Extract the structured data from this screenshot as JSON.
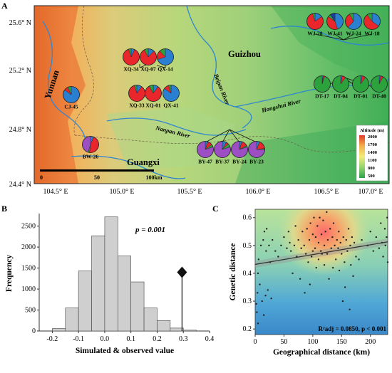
{
  "colors": {
    "pie": [
      "#2a7fd0",
      "#e8262b",
      "#2ba23c",
      "#9b4fc3",
      "#1c3f9c"
    ],
    "histogram_bar": "#cfcfcf",
    "observed_marker": "#111111",
    "regression": "#333333"
  },
  "panel_a": {
    "label": "A",
    "lat_ticks": [
      "25.6° N",
      "25.2° N",
      "24.8° N",
      "24.4° N"
    ],
    "lon_ticks": [
      "104.5° E",
      "105.0° E",
      "105.5° E",
      "106.0° E",
      "106.5° E",
      "107.0° E"
    ],
    "regions": {
      "yunnan": "Yunnan",
      "guizhou": "Guizhou",
      "guangxi": "Guangxi"
    },
    "rivers": {
      "beipan": "Beipan River",
      "hongshui": "Hongshui River",
      "nanpan": "Nanpan River"
    },
    "scale": [
      "0",
      "50",
      "100km"
    ],
    "legend": {
      "title": "Altitude (m)",
      "values": [
        "2000",
        "1700",
        "1400",
        "1100",
        "800",
        "500"
      ]
    },
    "populations": [
      {
        "id": "CJ-45",
        "shares": [
          0.85,
          0.08,
          0.07,
          0,
          0
        ]
      },
      {
        "id": "BW-26",
        "shares": [
          0.06,
          0.46,
          0.03,
          0.45,
          0
        ]
      },
      {
        "id": "XQ-34",
        "shares": [
          0.07,
          0.88,
          0.05,
          0,
          0
        ]
      },
      {
        "id": "XQ-07",
        "shares": [
          0.12,
          0.8,
          0.08,
          0,
          0
        ]
      },
      {
        "id": "QX-14",
        "shares": [
          0.7,
          0.18,
          0.12,
          0,
          0
        ]
      },
      {
        "id": "XQ-33",
        "shares": [
          0.1,
          0.85,
          0.05,
          0,
          0
        ]
      },
      {
        "id": "XQ-01",
        "shares": [
          0.1,
          0.82,
          0.08,
          0,
          0
        ]
      },
      {
        "id": "QX-41",
        "shares": [
          0.85,
          0.1,
          0.05,
          0,
          0
        ]
      },
      {
        "id": "WJ-28",
        "shares": [
          0.15,
          0.8,
          0.05,
          0,
          0
        ]
      },
      {
        "id": "WJ-41",
        "shares": [
          0.45,
          0.4,
          0.05,
          0,
          0.1
        ]
      },
      {
        "id": "WJ-24",
        "shares": [
          0.62,
          0.3,
          0.08,
          0,
          0
        ]
      },
      {
        "id": "WJ-18",
        "shares": [
          0.35,
          0.55,
          0.1,
          0,
          0
        ]
      },
      {
        "id": "DT-17",
        "shares": [
          0.02,
          0.03,
          0.95,
          0,
          0
        ]
      },
      {
        "id": "DT-04",
        "shares": [
          0.03,
          0.07,
          0.9,
          0,
          0
        ]
      },
      {
        "id": "DT-01",
        "shares": [
          0.03,
          0.07,
          0.9,
          0,
          0
        ]
      },
      {
        "id": "DT-40",
        "shares": [
          0.03,
          0.05,
          0.92,
          0,
          0
        ]
      },
      {
        "id": "BY-47",
        "shares": [
          0.05,
          0.1,
          0.05,
          0.8,
          0
        ]
      },
      {
        "id": "BY-37",
        "shares": [
          0.08,
          0.05,
          0.07,
          0.8,
          0
        ]
      },
      {
        "id": "BY-24",
        "shares": [
          0.05,
          0.12,
          0.03,
          0.8,
          0
        ]
      },
      {
        "id": "BY-23",
        "shares": [
          0.06,
          0.17,
          0.02,
          0.75,
          0
        ]
      }
    ]
  },
  "chart_data": [
    {
      "panel": "B",
      "type": "bar",
      "xlabel": "Simulated & observed value",
      "ylabel": "Frequency",
      "xlim": [
        -0.25,
        0.4
      ],
      "ylim": [
        0,
        2800
      ],
      "x_ticks": [
        "-0.2",
        "-0.1",
        "0.0",
        "0.1",
        "0.2",
        "0.3",
        "0.4"
      ],
      "y_ticks": [
        "0",
        "500",
        "1000",
        "1500",
        "2000",
        "2500"
      ],
      "bins": [
        {
          "x0": -0.2,
          "x1": -0.15,
          "count": 60
        },
        {
          "x0": -0.15,
          "x1": -0.1,
          "count": 550
        },
        {
          "x0": -0.1,
          "x1": -0.05,
          "count": 1430
        },
        {
          "x0": -0.05,
          "x1": 0.0,
          "count": 2270
        },
        {
          "x0": 0.0,
          "x1": 0.05,
          "count": 2720
        },
        {
          "x0": 0.05,
          "x1": 0.1,
          "count": 1790
        },
        {
          "x0": 0.1,
          "x1": 0.15,
          "count": 1170
        },
        {
          "x0": 0.15,
          "x1": 0.2,
          "count": 550
        },
        {
          "x0": 0.2,
          "x1": 0.25,
          "count": 250
        },
        {
          "x0": 0.25,
          "x1": 0.3,
          "count": 70
        },
        {
          "x0": 0.3,
          "x1": 0.35,
          "count": 20
        }
      ],
      "observed_value": 0.295,
      "observed_marker_height": 1400,
      "annotation": "p = 0.001"
    },
    {
      "panel": "C",
      "type": "scatter",
      "xlabel": "Geographical distance (km)",
      "ylabel": "Genetic distance",
      "xlim": [
        0,
        230
      ],
      "ylim": [
        0.18,
        0.63
      ],
      "x_ticks": [
        "0",
        "50",
        "100",
        "150",
        "200"
      ],
      "y_ticks": [
        "0.2",
        "0.3",
        "0.4",
        "0.5",
        "0.6"
      ],
      "regression": {
        "x": [
          0,
          230
        ],
        "y": [
          0.432,
          0.513
        ]
      },
      "annotation": "R²adj = 0.0850, p < 0.001",
      "points_generated_note": "",
      "points": [
        [
          2,
          0.29
        ],
        [
          3,
          0.26
        ],
        [
          4,
          0.33
        ],
        [
          5,
          0.22
        ],
        [
          5,
          0.4
        ],
        [
          6,
          0.45
        ],
        [
          8,
          0.36
        ],
        [
          10,
          0.5
        ],
        [
          12,
          0.3
        ],
        [
          14,
          0.52
        ],
        [
          15,
          0.25
        ],
        [
          16,
          0.55
        ],
        [
          18,
          0.32
        ],
        [
          19,
          0.48
        ],
        [
          20,
          0.56
        ],
        [
          22,
          0.34
        ],
        [
          24,
          0.5
        ],
        [
          26,
          0.44
        ],
        [
          28,
          0.31
        ],
        [
          30,
          0.52
        ],
        [
          35,
          0.48
        ],
        [
          40,
          0.46
        ],
        [
          45,
          0.5
        ],
        [
          50,
          0.53
        ],
        [
          55,
          0.49
        ],
        [
          58,
          0.55
        ],
        [
          60,
          0.51
        ],
        [
          62,
          0.48
        ],
        [
          65,
          0.4
        ],
        [
          68,
          0.5
        ],
        [
          70,
          0.57
        ],
        [
          72,
          0.46
        ],
        [
          75,
          0.52
        ],
        [
          78,
          0.38
        ],
        [
          80,
          0.49
        ],
        [
          82,
          0.55
        ],
        [
          85,
          0.5
        ],
        [
          86,
          0.33
        ],
        [
          88,
          0.47
        ],
        [
          90,
          0.56
        ],
        [
          92,
          0.44
        ],
        [
          94,
          0.52
        ],
        [
          95,
          0.36
        ],
        [
          96,
          0.58
        ],
        [
          98,
          0.46
        ],
        [
          100,
          0.54
        ],
        [
          100,
          0.48
        ],
        [
          102,
          0.6
        ],
        [
          104,
          0.49
        ],
        [
          105,
          0.53
        ],
        [
          106,
          0.42
        ],
        [
          108,
          0.57
        ],
        [
          110,
          0.51
        ],
        [
          110,
          0.45
        ],
        [
          112,
          0.6
        ],
        [
          114,
          0.48
        ],
        [
          115,
          0.54
        ],
        [
          116,
          0.47
        ],
        [
          118,
          0.59
        ],
        [
          120,
          0.5
        ],
        [
          120,
          0.43
        ],
        [
          122,
          0.55
        ],
        [
          124,
          0.62
        ],
        [
          125,
          0.47
        ],
        [
          126,
          0.52
        ],
        [
          128,
          0.38
        ],
        [
          130,
          0.56
        ],
        [
          132,
          0.49
        ],
        [
          134,
          0.53
        ],
        [
          135,
          0.42
        ],
        [
          136,
          0.58
        ],
        [
          138,
          0.5
        ],
        [
          140,
          0.45
        ],
        [
          142,
          0.52
        ],
        [
          144,
          0.49
        ],
        [
          145,
          0.55
        ],
        [
          146,
          0.41
        ],
        [
          148,
          0.51
        ],
        [
          150,
          0.47
        ],
        [
          152,
          0.3
        ],
        [
          153,
          0.53
        ],
        [
          155,
          0.44
        ],
        [
          156,
          0.35
        ],
        [
          158,
          0.52
        ],
        [
          160,
          0.48
        ],
        [
          162,
          0.56
        ],
        [
          164,
          0.27
        ],
        [
          165,
          0.5
        ],
        [
          166,
          0.43
        ],
        [
          168,
          0.53
        ],
        [
          170,
          0.39
        ],
        [
          172,
          0.51
        ],
        [
          175,
          0.46
        ],
        [
          180,
          0.45
        ],
        [
          185,
          0.52
        ],
        [
          195,
          0.5
        ],
        [
          200,
          0.55
        ],
        [
          205,
          0.48
        ],
        [
          210,
          0.53
        ],
        [
          215,
          0.49
        ],
        [
          218,
          0.58
        ],
        [
          220,
          0.51
        ],
        [
          222,
          0.46
        ],
        [
          225,
          0.56
        ],
        [
          226,
          0.5
        ],
        [
          228,
          0.53
        ],
        [
          229,
          0.6
        ],
        [
          230,
          0.44
        ]
      ]
    }
  ]
}
